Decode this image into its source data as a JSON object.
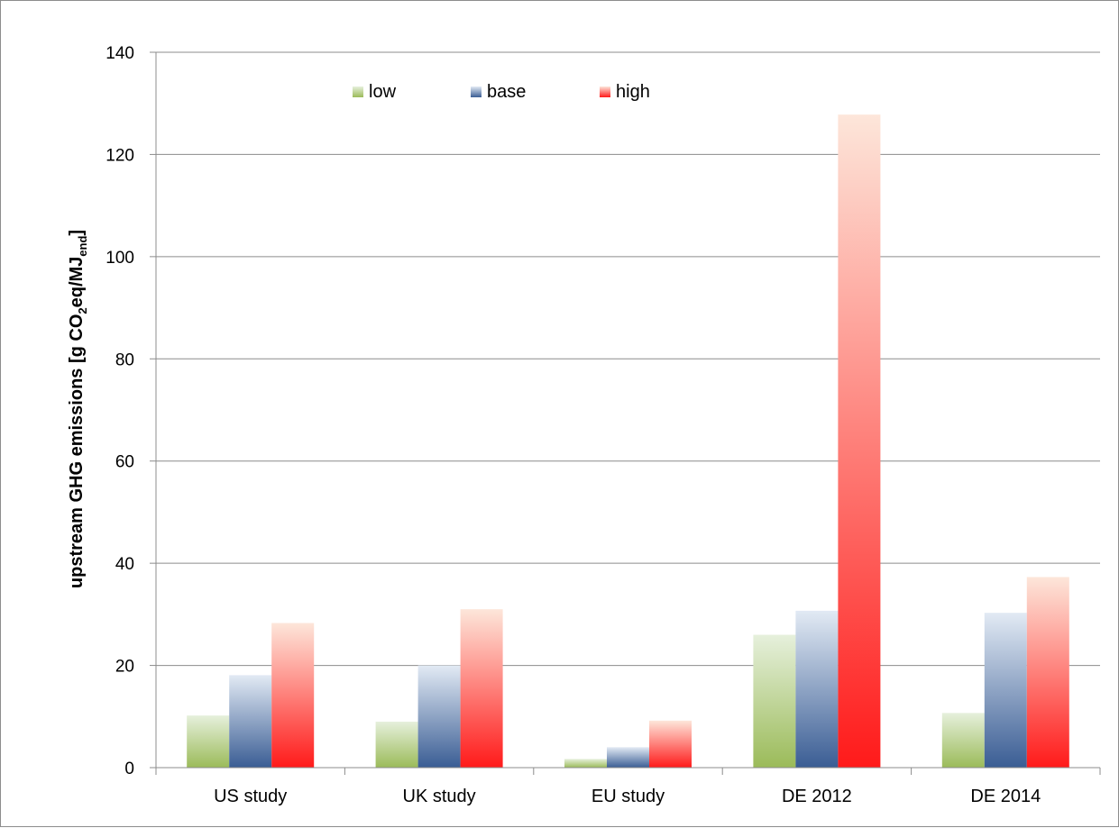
{
  "chart_data": {
    "type": "bar",
    "title": "",
    "xlabel": "",
    "ylabel": {
      "prefix": "upstream GHG emissions [g CO",
      "sub1": "2",
      "middle": "eq/MJ",
      "sub2": "end",
      "suffix": "]"
    },
    "categories": [
      "US study",
      "UK study",
      "EU study",
      "DE 2012",
      "DE 2014"
    ],
    "series": [
      {
        "name": "low",
        "values": [
          10.2,
          9.0,
          1.7,
          26.0,
          10.7
        ]
      },
      {
        "name": "base",
        "values": [
          18.1,
          20.0,
          4.0,
          30.7,
          30.3
        ]
      },
      {
        "name": "high",
        "values": [
          28.3,
          31.0,
          9.2,
          127.8,
          37.3
        ]
      }
    ],
    "ylim": [
      0,
      140
    ],
    "yticks": [
      0,
      20,
      40,
      60,
      80,
      100,
      120,
      140
    ],
    "grid": true,
    "legend_position": "top-left",
    "colors": {
      "low": {
        "top": "#e6f0dc",
        "bottom": "#9bbb59"
      },
      "base": {
        "top": "#e2eaf4",
        "bottom": "#3a5d94"
      },
      "high": {
        "top": "#fde6da",
        "bottom": "#ff1a1a"
      },
      "grid": "#8c8c8c",
      "axis": "#8c8c8c"
    }
  }
}
